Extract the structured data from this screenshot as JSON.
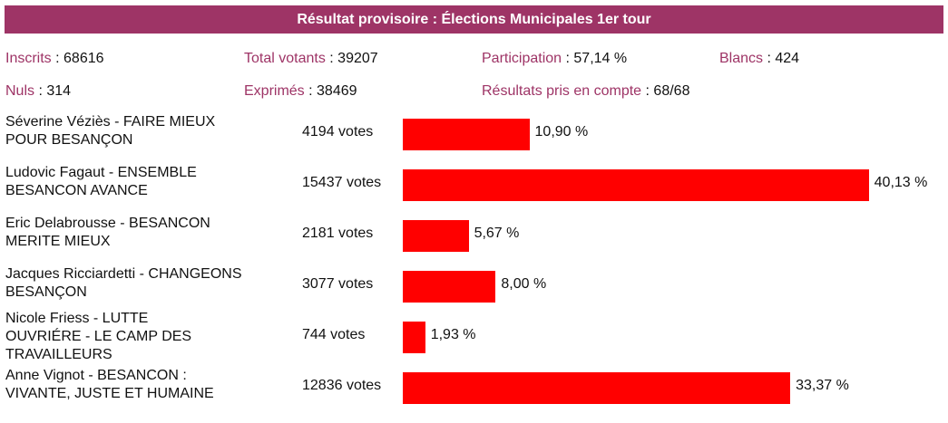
{
  "header": {
    "title": "Résultat provisoire : Élections Municipales 1er tour"
  },
  "stats": {
    "inscrits": {
      "label": "Inscrits",
      "value": "68616"
    },
    "total_votants": {
      "label": "Total votants",
      "value": "39207"
    },
    "participation": {
      "label": "Participation",
      "value": "57,14 %"
    },
    "blancs": {
      "label": "Blancs",
      "value": "424"
    },
    "nuls": {
      "label": "Nuls",
      "value": "314"
    },
    "exprimes": {
      "label": "Exprimés",
      "value": "38469"
    },
    "resultats": {
      "label": "Résultats pris en compte",
      "value": "68/68"
    }
  },
  "colors": {
    "header_bg": "#9e3466",
    "label_text": "#9e3466",
    "bar": "#ff0000"
  },
  "candidates": [
    {
      "name": "Séverine Véziès - FAIRE MIEUX POUR BESANÇON",
      "votes": "4194 votes",
      "percent_label": "10,90 %",
      "percent": 10.9
    },
    {
      "name": "Ludovic Fagaut - ENSEMBLE BESANCON AVANCE",
      "votes": "15437 votes",
      "percent_label": "40,13 %",
      "percent": 40.13
    },
    {
      "name": "Eric Delabrousse - BESANCON MERITE MIEUX",
      "votes": "2181 votes",
      "percent_label": "5,67 %",
      "percent": 5.67
    },
    {
      "name": "Jacques Ricciardetti - CHANGEONS BESANÇON",
      "votes": "3077 votes",
      "percent_label": "8,00 %",
      "percent": 8.0
    },
    {
      "name": "Nicole Friess - LUTTE OUVRIÉRE - LE CAMP DES TRAVAILLEURS",
      "votes": "744 votes",
      "percent_label": "1,93 %",
      "percent": 1.93
    },
    {
      "name": "Anne Vignot - BESANCON : VIVANTE, JUSTE ET HUMAINE",
      "votes": "12836 votes",
      "percent_label": "33,37 %",
      "percent": 33.37
    }
  ]
}
